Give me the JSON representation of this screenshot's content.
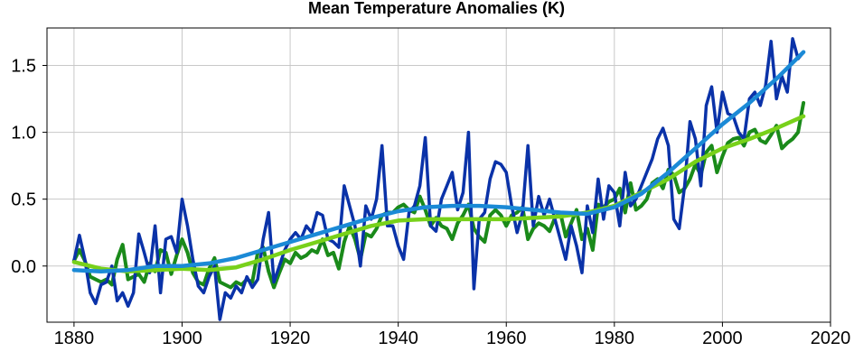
{
  "chart_data": {
    "type": "line",
    "title": "Mean Temperature Anomalies (K)",
    "xlabel": "",
    "ylabel": "",
    "xlim": [
      1875,
      2020
    ],
    "ylim": [
      -0.42,
      1.78
    ],
    "x_ticks": [
      1880,
      1900,
      1920,
      1940,
      1960,
      1980,
      2000,
      2020
    ],
    "y_ticks": [
      0.0,
      0.5,
      1.0,
      1.5
    ],
    "x_tick_labels": [
      "1880",
      "1900",
      "1920",
      "1940",
      "1960",
      "1980",
      "2000",
      "2020"
    ],
    "y_tick_labels": [
      "0.0",
      "0.5",
      "1.0",
      "1.5"
    ],
    "grid": true,
    "series": [
      {
        "color": "#1a8a1a",
        "x": [
          1880,
          1881,
          1882,
          1883,
          1884,
          1885,
          1886,
          1887,
          1888,
          1889,
          1890,
          1891,
          1892,
          1893,
          1894,
          1895,
          1896,
          1897,
          1898,
          1899,
          1900,
          1901,
          1902,
          1903,
          1904,
          1905,
          1906,
          1907,
          1908,
          1909,
          1910,
          1911,
          1912,
          1913,
          1914,
          1915,
          1916,
          1917,
          1918,
          1919,
          1920,
          1921,
          1922,
          1923,
          1924,
          1925,
          1926,
          1927,
          1928,
          1929,
          1930,
          1931,
          1932,
          1933,
          1934,
          1935,
          1936,
          1937,
          1938,
          1939,
          1940,
          1941,
          1942,
          1943,
          1944,
          1945,
          1946,
          1947,
          1948,
          1949,
          1950,
          1951,
          1952,
          1953,
          1954,
          1955,
          1956,
          1957,
          1958,
          1959,
          1960,
          1961,
          1962,
          1963,
          1964,
          1965,
          1966,
          1967,
          1968,
          1969,
          1970,
          1971,
          1972,
          1973,
          1974,
          1975,
          1976,
          1977,
          1978,
          1979,
          1980,
          1981,
          1982,
          1983,
          1984,
          1985,
          1986,
          1987,
          1988,
          1989,
          1990,
          1991,
          1992,
          1993,
          1994,
          1995,
          1996,
          1997,
          1998,
          1999,
          2000,
          2001,
          2002,
          2003,
          2004,
          2005,
          2006,
          2007,
          2008,
          2009,
          2010,
          2011,
          2012,
          2013,
          2014,
          2015
        ],
        "values": [
          0.04,
          0.12,
          0.04,
          -0.08,
          -0.1,
          -0.12,
          -0.1,
          -0.14,
          0.05,
          0.16,
          -0.1,
          -0.08,
          -0.06,
          -0.12,
          0.02,
          -0.04,
          0.12,
          0.1,
          -0.06,
          0.08,
          0.2,
          0.1,
          -0.05,
          -0.12,
          -0.14,
          -0.02,
          0.06,
          -0.12,
          -0.14,
          -0.16,
          -0.12,
          -0.14,
          -0.1,
          -0.12,
          0.1,
          0.14,
          -0.04,
          -0.16,
          -0.05,
          0.05,
          0.02,
          0.1,
          0.06,
          0.08,
          0.12,
          0.1,
          0.2,
          0.08,
          0.1,
          -0.02,
          0.18,
          0.3,
          0.2,
          0.05,
          0.24,
          0.22,
          0.28,
          0.38,
          0.4,
          0.4,
          0.44,
          0.46,
          0.42,
          0.4,
          0.52,
          0.42,
          0.3,
          0.36,
          0.3,
          0.28,
          0.2,
          0.32,
          0.38,
          0.46,
          0.28,
          0.22,
          0.18,
          0.38,
          0.42,
          0.38,
          0.3,
          0.38,
          0.4,
          0.44,
          0.2,
          0.28,
          0.32,
          0.3,
          0.26,
          0.36,
          0.4,
          0.22,
          0.32,
          0.42,
          0.2,
          0.28,
          0.12,
          0.46,
          0.44,
          0.48,
          0.5,
          0.58,
          0.4,
          0.62,
          0.42,
          0.45,
          0.5,
          0.62,
          0.65,
          0.58,
          0.72,
          0.68,
          0.55,
          0.58,
          0.65,
          0.76,
          0.68,
          0.85,
          0.9,
          0.7,
          0.82,
          0.92,
          0.95,
          0.96,
          0.9,
          1.0,
          1.02,
          0.94,
          0.92,
          0.98,
          1.05,
          0.88,
          0.92,
          0.95,
          1.0,
          1.22
        ]
      },
      {
        "color": "#0a32a8",
        "x": [
          1880,
          1881,
          1882,
          1883,
          1884,
          1885,
          1886,
          1887,
          1888,
          1889,
          1890,
          1891,
          1892,
          1893,
          1894,
          1895,
          1896,
          1897,
          1898,
          1899,
          1900,
          1901,
          1902,
          1903,
          1904,
          1905,
          1906,
          1907,
          1908,
          1909,
          1910,
          1911,
          1912,
          1913,
          1914,
          1915,
          1916,
          1917,
          1918,
          1919,
          1920,
          1921,
          1922,
          1923,
          1924,
          1925,
          1926,
          1927,
          1928,
          1929,
          1930,
          1931,
          1932,
          1933,
          1934,
          1935,
          1936,
          1937,
          1938,
          1939,
          1940,
          1941,
          1942,
          1943,
          1944,
          1945,
          1946,
          1947,
          1948,
          1949,
          1950,
          1951,
          1952,
          1953,
          1954,
          1955,
          1956,
          1957,
          1958,
          1959,
          1960,
          1961,
          1962,
          1963,
          1964,
          1965,
          1966,
          1967,
          1968,
          1969,
          1970,
          1971,
          1972,
          1973,
          1974,
          1975,
          1976,
          1977,
          1978,
          1979,
          1980,
          1981,
          1982,
          1983,
          1984,
          1985,
          1986,
          1987,
          1988,
          1989,
          1990,
          1991,
          1992,
          1993,
          1994,
          1995,
          1996,
          1997,
          1998,
          1999,
          2000,
          2001,
          2002,
          2003,
          2004,
          2005,
          2006,
          2007,
          2008,
          2009,
          2010,
          2011,
          2012,
          2013,
          2014,
          2015
        ],
        "values": [
          0.04,
          0.23,
          0.05,
          -0.2,
          -0.28,
          -0.14,
          -0.12,
          0.0,
          -0.26,
          -0.2,
          -0.3,
          -0.2,
          0.24,
          0.1,
          -0.05,
          0.3,
          -0.2,
          0.2,
          0.22,
          0.1,
          0.5,
          0.3,
          0.05,
          -0.15,
          -0.2,
          -0.08,
          0.0,
          -0.4,
          -0.2,
          -0.24,
          -0.15,
          -0.2,
          -0.08,
          -0.16,
          -0.1,
          0.2,
          0.4,
          -0.12,
          0.0,
          0.12,
          0.2,
          0.25,
          0.2,
          0.3,
          0.25,
          0.4,
          0.38,
          0.2,
          0.18,
          0.14,
          0.6,
          0.45,
          0.3,
          0.0,
          0.45,
          0.35,
          0.5,
          0.9,
          0.3,
          0.3,
          0.15,
          0.05,
          0.4,
          0.45,
          0.6,
          0.96,
          0.3,
          0.26,
          0.5,
          0.6,
          0.7,
          0.42,
          0.55,
          1.0,
          -0.17,
          0.35,
          0.4,
          0.65,
          0.78,
          0.76,
          0.7,
          0.45,
          0.25,
          0.4,
          0.9,
          0.3,
          0.52,
          0.38,
          0.5,
          0.35,
          0.2,
          0.05,
          0.3,
          0.15,
          -0.05,
          0.45,
          0.25,
          0.65,
          0.35,
          0.6,
          0.55,
          0.3,
          0.7,
          0.45,
          0.5,
          0.6,
          0.7,
          0.8,
          0.95,
          1.03,
          0.9,
          0.35,
          0.28,
          0.6,
          1.08,
          0.95,
          0.6,
          1.2,
          1.34,
          1.0,
          1.3,
          1.14,
          1.12,
          1.0,
          0.95,
          1.25,
          1.3,
          1.2,
          1.35,
          1.68,
          1.25,
          1.42,
          1.3,
          1.7,
          1.55,
          1.6
        ]
      },
      {
        "color": "#78d11a",
        "x": [
          1880,
          1885,
          1890,
          1895,
          1900,
          1905,
          1910,
          1915,
          1920,
          1925,
          1930,
          1935,
          1940,
          1945,
          1950,
          1955,
          1960,
          1965,
          1970,
          1975,
          1980,
          1985,
          1990,
          1995,
          2000,
          2005,
          2010,
          2015
        ],
        "values": [
          0.03,
          -0.02,
          -0.04,
          -0.03,
          -0.02,
          -0.03,
          -0.01,
          0.05,
          0.12,
          0.18,
          0.24,
          0.3,
          0.34,
          0.35,
          0.35,
          0.35,
          0.35,
          0.36,
          0.37,
          0.4,
          0.45,
          0.55,
          0.65,
          0.78,
          0.88,
          0.95,
          1.03,
          1.12
        ]
      },
      {
        "color": "#1b8ad6",
        "x": [
          1880,
          1885,
          1890,
          1895,
          1900,
          1905,
          1910,
          1915,
          1920,
          1925,
          1930,
          1935,
          1940,
          1945,
          1950,
          1955,
          1960,
          1965,
          1970,
          1975,
          1980,
          1985,
          1990,
          1995,
          2000,
          2005,
          2010,
          2015
        ],
        "values": [
          -0.03,
          -0.04,
          -0.03,
          0.0,
          0.0,
          0.02,
          0.06,
          0.12,
          0.18,
          0.24,
          0.3,
          0.36,
          0.41,
          0.44,
          0.45,
          0.45,
          0.44,
          0.42,
          0.4,
          0.39,
          0.44,
          0.54,
          0.7,
          0.88,
          1.06,
          1.22,
          1.4,
          1.6
        ]
      }
    ]
  }
}
